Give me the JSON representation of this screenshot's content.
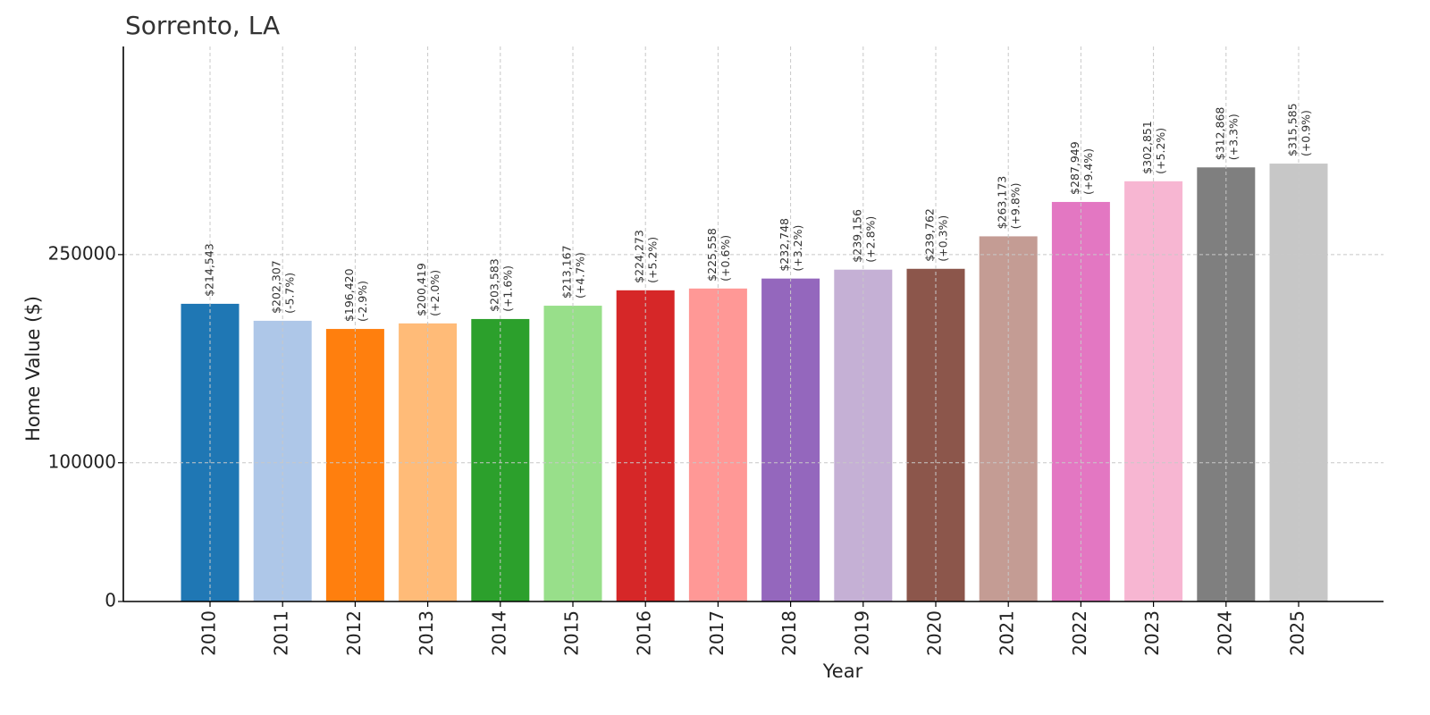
{
  "chart_data": {
    "type": "bar",
    "title": "Sorrento, LA",
    "xlabel": "Year",
    "ylabel": "Home Value ($)",
    "ylim": [
      0,
      400000
    ],
    "yticks": [
      0,
      100000,
      250000
    ],
    "grid": true,
    "categories": [
      "2010",
      "2011",
      "2012",
      "2013",
      "2014",
      "2015",
      "2016",
      "2017",
      "2018",
      "2019",
      "2020",
      "2021",
      "2022",
      "2023",
      "2024",
      "2025"
    ],
    "values": [
      214543,
      202307,
      196420,
      200419,
      203583,
      213167,
      224273,
      225558,
      232748,
      239156,
      239762,
      263173,
      287949,
      302851,
      312868,
      315585
    ],
    "value_labels": [
      "$214,543",
      "$202,307",
      "$196,420",
      "$200,419",
      "$203,583",
      "$213,167",
      "$224,273",
      "$225,558",
      "$232,748",
      "$239,156",
      "$239,762",
      "$263,173",
      "$287,949",
      "$302,851",
      "$312,868",
      "$315,585"
    ],
    "change_labels": [
      "",
      "(-5.7%)",
      "(-2.9%)",
      "(+2.0%)",
      "(+1.6%)",
      "(+4.7%)",
      "(+5.2%)",
      "(+0.6%)",
      "(+3.2%)",
      "(+2.8%)",
      "(+0.3%)",
      "(+9.8%)",
      "(+9.4%)",
      "(+5.2%)",
      "(+3.3%)",
      "(+0.9%)"
    ],
    "colors": [
      "#1f77b4",
      "#aec7e8",
      "#ff7f0e",
      "#ffbb78",
      "#2ca02c",
      "#98df8a",
      "#d62728",
      "#ff9896",
      "#9467bd",
      "#c5b0d5",
      "#8c564b",
      "#c49c94",
      "#e377c2",
      "#f7b6d2",
      "#7f7f7f",
      "#c7c7c7"
    ]
  }
}
